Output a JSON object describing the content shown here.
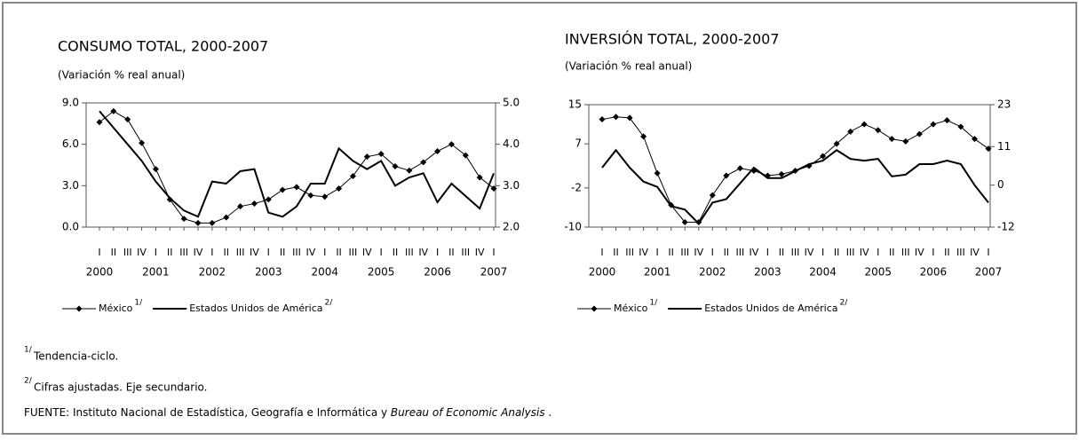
{
  "chart_data": [
    {
      "type": "line",
      "title": "CONSUMO TOTAL, 2000-2007",
      "subtitle": "(Variación % real anual)",
      "categories": [
        "I",
        "II",
        "III",
        "IV",
        "I",
        "II",
        "III",
        "IV",
        "I",
        "II",
        "III",
        "IV",
        "I",
        "II",
        "III",
        "IV",
        "I",
        "II",
        "III",
        "IV",
        "I",
        "II",
        "III",
        "IV",
        "I",
        "II",
        "III",
        "IV",
        "I"
      ],
      "year_labels": [
        "2000",
        "2001",
        "2002",
        "2003",
        "2004",
        "2005",
        "2006",
        "2007"
      ],
      "ylim": [
        0,
        9
      ],
      "yticks": [
        {
          "value": 0,
          "label": "0.0"
        },
        {
          "value": 3,
          "label": "3.0"
        },
        {
          "value": 6,
          "label": "6.0"
        },
        {
          "value": 9,
          "label": "9.0"
        }
      ],
      "y2lim": [
        2,
        5
      ],
      "y2ticks": [
        {
          "value": 2,
          "label": "2.0"
        },
        {
          "value": 3,
          "label": "3.0"
        },
        {
          "value": 4,
          "label": "4.0"
        },
        {
          "value": 5,
          "label": "5.0"
        }
      ],
      "series": [
        {
          "name": "México",
          "note": "1/",
          "color": "#000000",
          "marker": "diamond",
          "values": [
            7.6,
            8.4,
            7.8,
            6.1,
            4.2,
            2.0,
            0.6,
            0.3,
            0.3,
            0.7,
            1.5,
            1.7,
            2.0,
            2.7,
            2.9,
            2.3,
            2.2,
            2.8,
            3.7,
            5.1,
            5.3,
            4.4,
            4.1,
            4.7,
            5.5,
            6.0,
            5.2,
            3.6,
            2.8
          ]
        },
        {
          "name": "Estados Unidos  de América",
          "note": "2/",
          "color": "#000000",
          "axis": "y2",
          "values": [
            4.8,
            4.4,
            4.0,
            3.6,
            3.1,
            2.7,
            2.4,
            2.25,
            3.1,
            3.05,
            3.35,
            3.4,
            2.35,
            2.25,
            2.5,
            3.05,
            3.05,
            3.9,
            3.6,
            3.4,
            3.6,
            3.0,
            3.2,
            3.3,
            2.6,
            3.05,
            2.75,
            2.45,
            3.3
          ]
        }
      ]
    },
    {
      "type": "line",
      "title": "INVERSIÓN TOTAL, 2000-2007",
      "subtitle": "(Variación % real anual)",
      "categories": [
        "I",
        "II",
        "III",
        "IV",
        "I",
        "II",
        "III",
        "IV",
        "I",
        "II",
        "III",
        "IV",
        "I",
        "II",
        "III",
        "IV",
        "I",
        "II",
        "III",
        "IV",
        "I",
        "II",
        "III",
        "IV",
        "I",
        "II",
        "III",
        "IV",
        "I"
      ],
      "year_labels": [
        "2000",
        "2001",
        "2002",
        "2003",
        "2004",
        "2005",
        "2006",
        "2007"
      ],
      "ylim": [
        -10,
        15
      ],
      "yticks": [
        -10,
        -2,
        7,
        15
      ],
      "y2lim": [
        -12,
        23
      ],
      "y2ticks": [
        -12,
        0,
        11,
        23
      ],
      "series": [
        {
          "name": "México",
          "note": "1/",
          "color": "#000000",
          "marker": "diamond",
          "values": [
            12,
            12.5,
            12.3,
            8.5,
            1,
            -5.5,
            -9,
            -9,
            -3.5,
            0.5,
            2,
            1.5,
            0.5,
            0.8,
            1.5,
            2.5,
            4.5,
            7,
            9.5,
            11,
            9.8,
            8,
            7.5,
            9,
            11,
            11.8,
            10.5,
            8,
            6
          ]
        },
        {
          "name": "Estados Unidos de América",
          "note": "2/",
          "color": "#000000",
          "axis": "y2",
          "values": [
            5,
            10,
            5,
            1,
            -0.5,
            -6,
            -7,
            -11,
            -5,
            -4,
            0.5,
            5,
            2,
            2,
            4,
            6,
            7,
            10,
            7.5,
            7,
            7.5,
            2.5,
            3,
            6,
            6,
            7,
            6,
            0,
            -5
          ]
        }
      ]
    }
  ],
  "footnotes": [
    {
      "mark": "1/",
      "text": "Tendencia-ciclo."
    },
    {
      "mark": "2/",
      "text": "Cifras ajustadas. Eje secundario."
    }
  ],
  "source": {
    "text": "FUENTE: Instituto Nacional de Estadística, Geografía e Informática y ",
    "italic": "Bureau of Economic Analysis",
    "end": " ."
  }
}
